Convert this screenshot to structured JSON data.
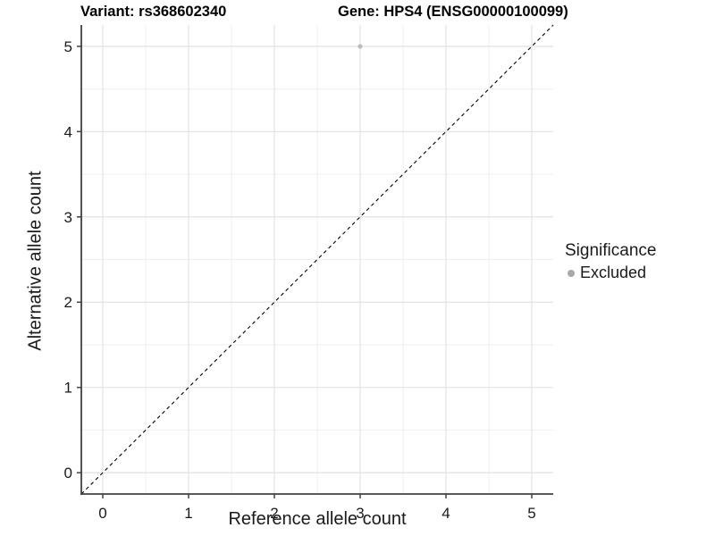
{
  "titles": {
    "left": "Variant: rs368602340",
    "right": "Gene: HPS4 (ENSG00000100099)"
  },
  "chart_data": {
    "type": "scatter",
    "xlabel": "Reference allele count",
    "ylabel": "Alternative allele count",
    "xlim": [
      -0.25,
      5.25
    ],
    "ylim": [
      -0.25,
      5.25
    ],
    "xticks": [
      0,
      1,
      2,
      3,
      4,
      5
    ],
    "yticks": [
      0,
      1,
      2,
      3,
      4,
      5
    ],
    "x_minor": [
      0.5,
      1.5,
      2.5,
      3.5,
      4.5
    ],
    "y_minor": [
      0.5,
      1.5,
      2.5,
      3.5,
      4.5
    ],
    "grid": true,
    "legend_position": "right",
    "series": [
      {
        "name": "Excluded",
        "color": "#bdbdbd",
        "points": [
          {
            "x": 3,
            "y": 5
          }
        ]
      }
    ],
    "reference_line": {
      "kind": "identity",
      "x1": -0.25,
      "y1": -0.25,
      "x2": 5.25,
      "y2": 5.25,
      "style": "dashed",
      "color": "#000000"
    }
  },
  "legend": {
    "title": "Significance",
    "items": [
      {
        "label": "Excluded",
        "color": "#a9a9a9"
      }
    ]
  },
  "colors": {
    "background": "#ffffff",
    "grid_major": "#e2e2e2",
    "grid_minor": "#efefef",
    "axis_line": "#404040",
    "tick_mark": "#404040",
    "tick_label": "#1a1a1a"
  }
}
